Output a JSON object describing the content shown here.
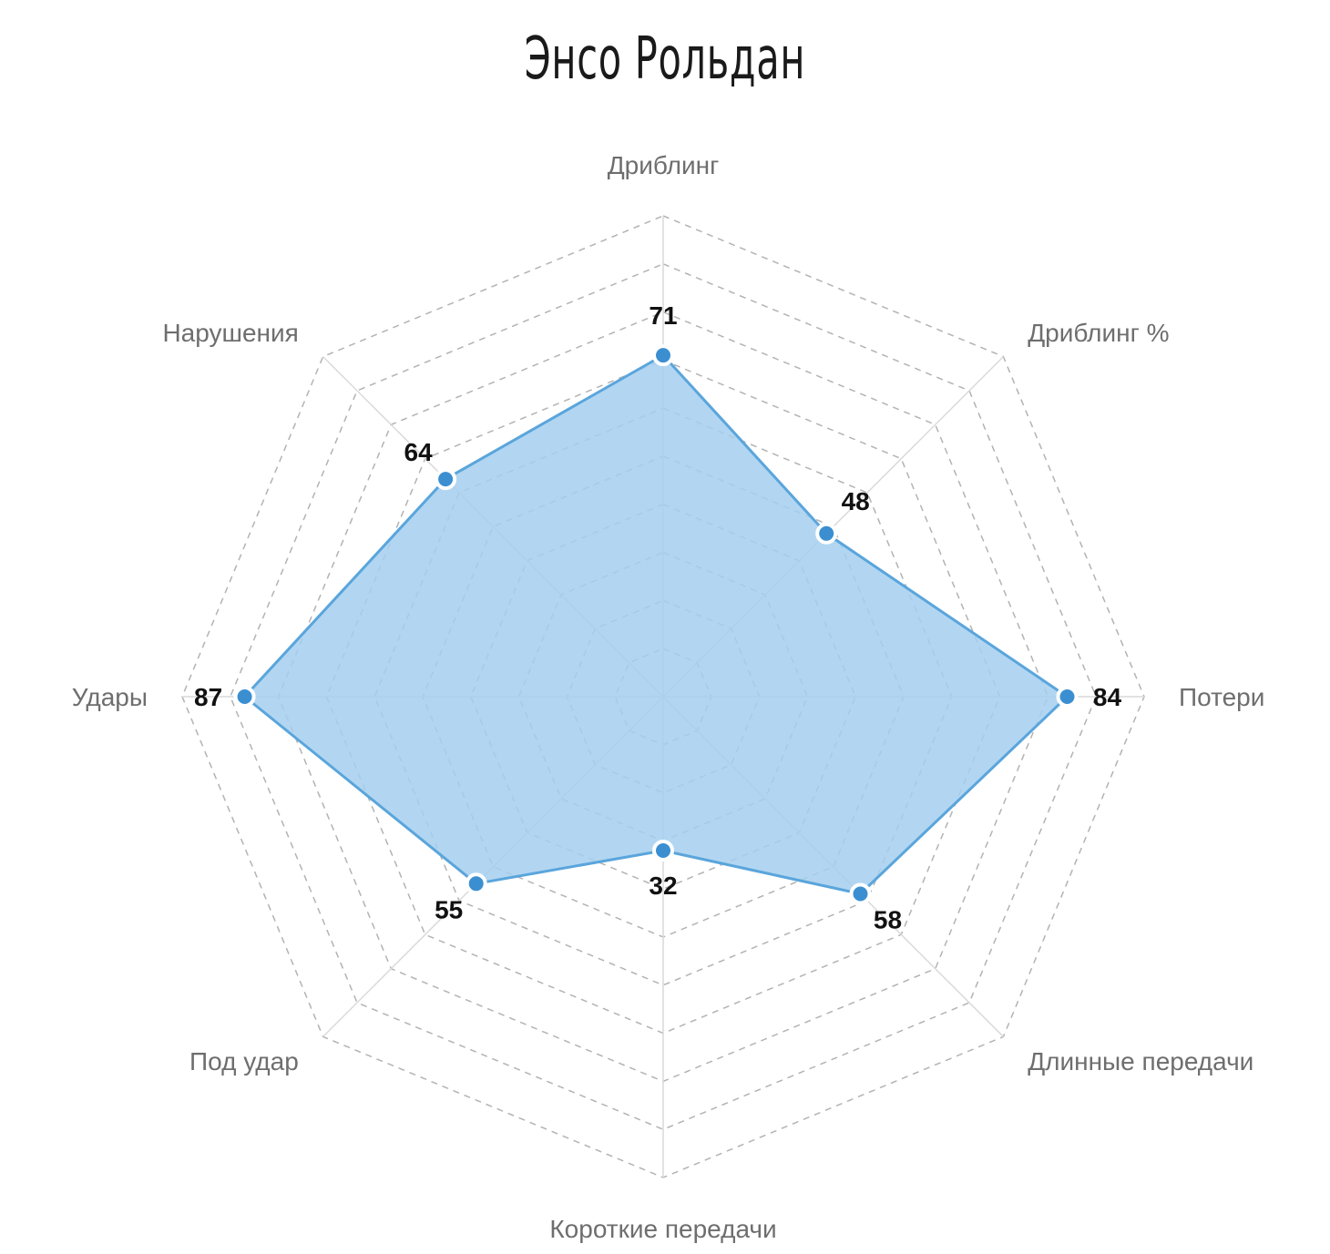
{
  "chart_data": {
    "type": "radar",
    "title": "Энсо Рольдан",
    "axes": [
      "Дриблинг",
      "Дриблинг %",
      "Потери",
      "Длинные передачи",
      "Короткие передачи",
      "Под удар",
      "Удары",
      "Нарушения"
    ],
    "series": [
      {
        "values": [
          71,
          48,
          84,
          58,
          32,
          55,
          87,
          64
        ]
      }
    ],
    "rlim": [
      0,
      100
    ],
    "grid": true,
    "grid_rings": 10,
    "colors": {
      "fill": "#a5cfee",
      "stroke": "#5aa5dc",
      "point": "#3b8fd1",
      "grid": "#b3b3b3",
      "axis_label": "#6e6e6e",
      "value_label": "#111111"
    }
  }
}
